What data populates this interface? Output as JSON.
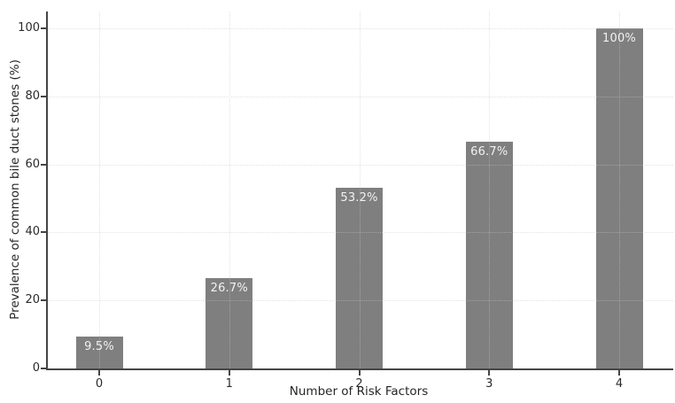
{
  "chart_data": {
    "type": "bar",
    "title": "",
    "xlabel": "Number of Risk Factors",
    "ylabel": "Prevalence of common bile duct stones (%)",
    "categories": [
      "0",
      "1",
      "2",
      "3",
      "4"
    ],
    "values": [
      9.5,
      26.7,
      53.2,
      66.7,
      100
    ],
    "bar_labels": [
      "9.5%",
      "26.7%",
      "53.2%",
      "66.7%",
      "100%"
    ],
    "yticks": [
      0,
      20,
      40,
      60,
      80,
      100
    ],
    "ytick_labels": [
      "0",
      "20",
      "40",
      "60",
      "80",
      "100"
    ],
    "ylim": [
      0,
      105
    ],
    "grid": true,
    "grid_style": "dotted",
    "legend": "none",
    "bar_label_position": "inside-top",
    "colors": {
      "bar": "#7f7f7f",
      "bar_label_text": "#f2f2f2",
      "axis": "#454545",
      "tick_label_text": "#2b2b2b",
      "axis_label_text": "#262626",
      "gridline": "#d9d9d9",
      "background": "#ffffff"
    }
  }
}
